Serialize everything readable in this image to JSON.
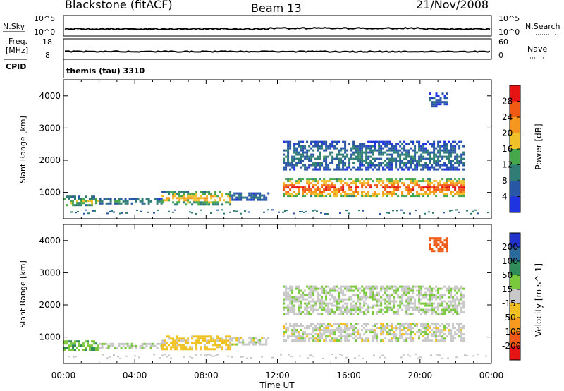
{
  "header": {
    "radar": "Blackstone (fitACF)",
    "beam": "Beam 13",
    "date": "21/Nov/2008"
  },
  "strips": {
    "nsky_label": "N.Sky",
    "nsky_ticks": [
      "10^5",
      "10^0"
    ],
    "nsearch_label": "N.Search",
    "nsearch_ticks": [
      "10^5",
      "10^0"
    ],
    "freq_label_1": "Freq.",
    "freq_label_2": "[MHz]",
    "freq_ticks": [
      "18",
      "8"
    ],
    "nave_label": "Nave",
    "nave_ticks": [
      "60",
      "0"
    ],
    "cpid_label": "CPID",
    "cpid_value": "themis (tau) 3310"
  },
  "chart_data": {
    "type": "heatmap",
    "x_axis": {
      "label": "Time UT",
      "ticks": [
        "00:00",
        "04:00",
        "08:00",
        "12:00",
        "16:00",
        "20:00",
        "00:00"
      ],
      "range_hours": [
        0,
        24
      ]
    },
    "y_axis": {
      "label": "Slant Range [km]",
      "ticks": [
        "1000",
        "2000",
        "3000",
        "4000"
      ],
      "range_km": [
        180,
        4500
      ]
    },
    "panels": [
      {
        "name": "power",
        "colorbar_label": "Power [dB]",
        "colorbar_ticks": [
          "4",
          "8",
          "12",
          "16",
          "20",
          "24",
          "28"
        ],
        "colorbar_range": [
          0,
          32
        ],
        "colors": [
          "#1f33e0",
          "#2a56a6",
          "#2f7d74",
          "#46a64c",
          "#f0c02a",
          "#f5961e",
          "#f05a14",
          "#e61414"
        ]
      },
      {
        "name": "velocity",
        "colorbar_label": "Velocity [m s^-1]",
        "colorbar_ticks": [
          "200",
          "100",
          "50",
          "15",
          "-15",
          "-50",
          "-100",
          "-200"
        ],
        "colors": [
          "#2233cc",
          "#2a6a9a",
          "#2f8c5a",
          "#7ac83c",
          "#c8c8c8",
          "#f0c020",
          "#f59a1e",
          "#f05a14",
          "#e61414"
        ]
      }
    ],
    "echo_regions": [
      {
        "t0": 0.0,
        "t1": 2.0,
        "r0": 600,
        "r1": 900,
        "power_db": 14,
        "velocity": 40
      },
      {
        "t0": 2.0,
        "t1": 5.5,
        "r0": 650,
        "r1": 820,
        "power_db": 10,
        "velocity": 5
      },
      {
        "t0": 5.5,
        "t1": 9.3,
        "r0": 650,
        "r1": 1050,
        "power_db": 18,
        "velocity": -30
      },
      {
        "t0": 9.3,
        "t1": 11.5,
        "r0": 800,
        "r1": 1000,
        "power_db": 8,
        "velocity": 0
      },
      {
        "t0": 12.3,
        "t1": 22.5,
        "r0": 900,
        "r1": 1450,
        "power_db": 24,
        "velocity": 0
      },
      {
        "t0": 12.3,
        "t1": 22.5,
        "r0": 1700,
        "r1": 2600,
        "power_db": 8,
        "velocity": 10
      },
      {
        "t0": 20.5,
        "t1": 21.5,
        "r0": 3700,
        "r1": 4100,
        "power_db": 6,
        "velocity": -150
      }
    ]
  }
}
